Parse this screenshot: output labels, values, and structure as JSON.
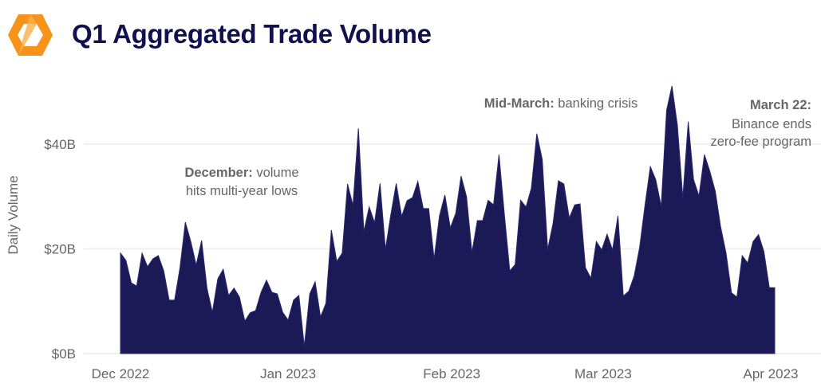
{
  "header": {
    "title": "Q1 Aggregated Trade Volume",
    "logo_icon": "orange-hexagon-logo"
  },
  "colors": {
    "area_fill": "#1b1a57",
    "title": "#12114f",
    "logo": "#f7931a",
    "grid": "#ececec",
    "text": "#666666"
  },
  "chart_data": {
    "type": "area",
    "title": "Q1 Aggregated Trade Volume",
    "xlabel": "",
    "ylabel": "Daily Volume",
    "ylim": [
      0,
      52
    ],
    "grid": true,
    "x_ticks": [
      "Dec 2022",
      "Jan 2023",
      "Feb 2023",
      "Mar 2023",
      "Apr 2023"
    ],
    "y_ticks": [
      {
        "value": 0,
        "label": "$0B"
      },
      {
        "value": 20,
        "label": "$20B"
      },
      {
        "value": 40,
        "label": "$40B"
      }
    ],
    "unit": "USD billions",
    "series_by_month": [
      {
        "month": "2022-12",
        "values": [
          19.2,
          17.8,
          13.5,
          12.9,
          19.2,
          16.6,
          18.1,
          18.7,
          15.8,
          10.2,
          10.2,
          16.3,
          25.1,
          21.4,
          16.9,
          21.6,
          12.5,
          7.9,
          14.3,
          16.1,
          11.1,
          12.5,
          10.8,
          6.2,
          7.8,
          8.2,
          11.7,
          14.0,
          11.7,
          11.4,
          7.9
        ]
      },
      {
        "month": "2023-01",
        "values": [
          6.4,
          10.2,
          11.1,
          1.4,
          11.4,
          13.7,
          7.0,
          9.6,
          23.6,
          17.6,
          19.2,
          32.4,
          28.3,
          43.0,
          23.3,
          28.0,
          25.0,
          32.5,
          19.9,
          26.5,
          32.5,
          26.2,
          29.2,
          29.8,
          32.9,
          27.7,
          27.7,
          18.1,
          26.3,
          30.3,
          24.0
        ]
      },
      {
        "month": "2023-02",
        "values": [
          26.8,
          33.9,
          30.0,
          19.3,
          25.4,
          25.4,
          29.3,
          28.4,
          38.0,
          26.5,
          15.8,
          17.0,
          29.3,
          28.0,
          31.6,
          42.0,
          37.1,
          19.9,
          24.8,
          33.0,
          32.4,
          25.9,
          28.4,
          28.6,
          16.4,
          14.4,
          21.4,
          19.8
        ]
      },
      {
        "month": "2023-03",
        "values": [
          22.8,
          19.8,
          26.3,
          11.0,
          11.9,
          14.8,
          20.2,
          28.3,
          35.7,
          33.2,
          28.1,
          46.5,
          51.1,
          43.6,
          29.7,
          44.3,
          33.2,
          30.1,
          38.0,
          34.8,
          31.0,
          24.2,
          19.2,
          11.6,
          10.8,
          18.7,
          17.3,
          21.4,
          22.7,
          19.5,
          12.6
        ]
      },
      {
        "month": "2023-04",
        "values": [
          12.6
        ]
      }
    ],
    "annotations": [
      {
        "bold": "December:",
        "text": " volume",
        "line2": "hits multi-year lows"
      },
      {
        "bold": "Mid-March:",
        "text": " banking crisis"
      },
      {
        "bold": "March 22:",
        "line2": "Binance ends",
        "line3": "zero-fee program"
      }
    ]
  }
}
